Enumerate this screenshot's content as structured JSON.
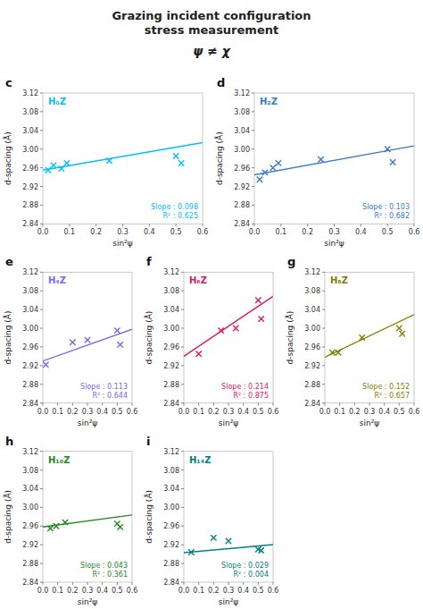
{
  "title": "Grazing incident configuration\nstress measurement",
  "subtitle": "ψ ≠ χ",
  "chart_data": [
    {
      "type": "scatter",
      "title": "H₀Z",
      "xlabel": "sin²ψ",
      "ylabel": "d-spacing (Å)",
      "annotations": [
        "c",
        "Slope : 0.098",
        "R² : 0.625"
      ],
      "xlim": [
        0.0,
        0.6
      ],
      "ylim": [
        2.84,
        3.12
      ],
      "xticks": [
        {
          "value": 0.0,
          "label": "0.0"
        },
        0.1,
        0.2,
        0.3,
        0.4,
        0.5,
        0.6
      ],
      "yticks": [
        2.84,
        2.88,
        2.92,
        2.96,
        {
          "value": 3.0,
          "label": "3.00"
        },
        3.04,
        3.08,
        3.12
      ],
      "series": [
        {
          "type": "scatter",
          "marker": "x",
          "color": "#00BFFF",
          "x": [
            0.02,
            0.04,
            0.07,
            0.09,
            0.25,
            0.5,
            0.52
          ],
          "values": [
            2.955,
            2.965,
            2.958,
            2.97,
            2.975,
            2.985,
            2.97
          ]
        },
        {
          "type": "line",
          "color": "#00BFFF",
          "x": [
            0.0,
            0.6
          ],
          "values": [
            2.955,
            3.0138
          ]
        }
      ]
    },
    {
      "type": "scatter",
      "title": "H₂Z",
      "xlabel": "sin²ψ",
      "ylabel": "d-spacing (Å)",
      "annotations": [
        "d",
        "Slope : 0.103",
        "R² : 0.682"
      ],
      "xlim": [
        0.0,
        0.6
      ],
      "ylim": [
        2.84,
        3.12
      ],
      "xticks": [
        {
          "value": 0.0,
          "label": "0.0"
        },
        0.1,
        0.2,
        0.3,
        0.4,
        0.5,
        0.6
      ],
      "yticks": [
        2.84,
        2.88,
        2.92,
        2.96,
        {
          "value": 3.0,
          "label": "3.00"
        },
        3.04,
        3.08,
        3.12
      ],
      "series": [
        {
          "type": "scatter",
          "marker": "x",
          "color": "#3A7BC8",
          "x": [
            0.02,
            0.04,
            0.07,
            0.09,
            0.25,
            0.5,
            0.52
          ],
          "values": [
            2.935,
            2.95,
            2.96,
            2.97,
            2.978,
            3.0,
            2.972
          ]
        },
        {
          "type": "line",
          "color": "#3A7BC8",
          "x": [
            0.0,
            0.6
          ],
          "values": [
            2.945,
            3.0068
          ]
        }
      ]
    },
    {
      "type": "scatter",
      "title": "H₄Z",
      "xlabel": "sin²ψ",
      "ylabel": "d-spacing (Å)",
      "annotations": [
        "e",
        "Slope : 0.113",
        "R² : 0.644"
      ],
      "xlim": [
        0.0,
        0.6
      ],
      "ylim": [
        2.84,
        3.12
      ],
      "xticks": [
        {
          "value": 0.0,
          "label": "0.0"
        },
        0.1,
        0.2,
        0.3,
        0.4,
        0.5,
        0.6
      ],
      "yticks": [
        2.84,
        2.88,
        2.92,
        2.96,
        {
          "value": 3.0,
          "label": "3.00"
        },
        3.04,
        3.08,
        3.12
      ],
      "series": [
        {
          "type": "scatter",
          "marker": "x",
          "color": "#7B68EE",
          "x": [
            0.02,
            0.2,
            0.3,
            0.5,
            0.52
          ],
          "values": [
            2.922,
            2.97,
            2.975,
            2.995,
            2.965
          ]
        },
        {
          "type": "line",
          "color": "#7B68EE",
          "x": [
            0.0,
            0.6
          ],
          "values": [
            2.93,
            2.9978
          ]
        }
      ]
    },
    {
      "type": "scatter",
      "title": "H₆Z",
      "xlabel": "sin²ψ",
      "ylabel": "d-spacing (Å)",
      "annotations": [
        "f",
        "Slope : 0.214",
        "R² : 0.875"
      ],
      "xlim": [
        0.0,
        0.6
      ],
      "ylim": [
        2.84,
        3.12
      ],
      "xticks": [
        {
          "value": 0.0,
          "label": "0.0"
        },
        0.1,
        0.2,
        0.3,
        0.4,
        0.5,
        0.6
      ],
      "yticks": [
        2.84,
        2.88,
        2.92,
        2.96,
        {
          "value": 3.0,
          "label": "3.00"
        },
        3.04,
        3.08,
        3.12
      ],
      "series": [
        {
          "type": "scatter",
          "marker": "x",
          "color": "#E0185A",
          "x": [
            0.1,
            0.25,
            0.35,
            0.5,
            0.52
          ],
          "values": [
            2.945,
            2.995,
            3.0,
            3.06,
            3.02
          ]
        },
        {
          "type": "line",
          "color": "#E0185A",
          "x": [
            0.0,
            0.6
          ],
          "values": [
            2.94,
            3.0684
          ]
        }
      ]
    },
    {
      "type": "scatter",
      "title": "H₈Z",
      "xlabel": "sin²ψ",
      "ylabel": "d-spacing (Å)",
      "annotations": [
        "g",
        "Slope : 0.152",
        "R² : 0.657"
      ],
      "xlim": [
        0.0,
        0.6
      ],
      "ylim": [
        2.84,
        3.12
      ],
      "xticks": [
        {
          "value": 0.0,
          "label": "0.0"
        },
        0.1,
        0.2,
        0.3,
        0.4,
        0.5,
        0.6
      ],
      "yticks": [
        2.84,
        2.88,
        2.92,
        2.96,
        {
          "value": 3.0,
          "label": "3.00"
        },
        3.04,
        3.08,
        3.12
      ],
      "series": [
        {
          "type": "scatter",
          "marker": "x",
          "color": "#808000",
          "x": [
            0.05,
            0.09,
            0.25,
            0.5,
            0.52
          ],
          "values": [
            2.948,
            2.948,
            2.98,
            3.0,
            2.988
          ]
        },
        {
          "type": "line",
          "color": "#808000",
          "x": [
            0.0,
            0.6
          ],
          "values": [
            2.938,
            3.0292
          ]
        }
      ]
    },
    {
      "type": "scatter",
      "title": "H₁₀Z",
      "xlabel": "sin²ψ",
      "ylabel": "d-spacing (Å)",
      "annotations": [
        "h",
        "Slope : 0.043",
        "R² : 0.361"
      ],
      "xlim": [
        0.0,
        0.6
      ],
      "ylim": [
        2.84,
        3.12
      ],
      "xticks": [
        {
          "value": 0.0,
          "label": "0.0"
        },
        0.1,
        0.2,
        0.3,
        0.4,
        0.5,
        0.6
      ],
      "yticks": [
        2.84,
        2.88,
        2.92,
        2.96,
        {
          "value": 3.0,
          "label": "3.00"
        },
        3.04,
        3.08,
        3.12
      ],
      "series": [
        {
          "type": "scatter",
          "marker": "x",
          "color": "#228B22",
          "x": [
            0.05,
            0.09,
            0.15,
            0.5,
            0.52
          ],
          "values": [
            2.955,
            2.96,
            2.968,
            2.965,
            2.958
          ]
        },
        {
          "type": "line",
          "color": "#228B22",
          "x": [
            0.0,
            0.6
          ],
          "values": [
            2.958,
            2.9838
          ]
        }
      ]
    },
    {
      "type": "scatter",
      "title": "H₁₄Z",
      "xlabel": "sin²ψ",
      "ylabel": "d-spacing (Å)",
      "annotations": [
        "i",
        "Slope : 0.029",
        "R² : 0.004"
      ],
      "xlim": [
        0.0,
        0.6
      ],
      "ylim": [
        2.84,
        3.12
      ],
      "xticks": [
        {
          "value": 0.0,
          "label": "0.0"
        },
        0.1,
        0.2,
        0.3,
        0.4,
        0.5,
        0.6
      ],
      "yticks": [
        2.84,
        2.88,
        2.92,
        2.96,
        {
          "value": 3.0,
          "label": "3.00"
        },
        3.04,
        3.08,
        3.12
      ],
      "series": [
        {
          "type": "scatter",
          "marker": "x",
          "color": "#008080",
          "x": [
            0.05,
            0.2,
            0.3,
            0.5,
            0.52
          ],
          "values": [
            2.904,
            2.935,
            2.928,
            2.91,
            2.908
          ]
        },
        {
          "type": "line",
          "color": "#008080",
          "x": [
            0.0,
            0.6
          ],
          "values": [
            2.903,
            2.9204
          ]
        }
      ]
    }
  ]
}
